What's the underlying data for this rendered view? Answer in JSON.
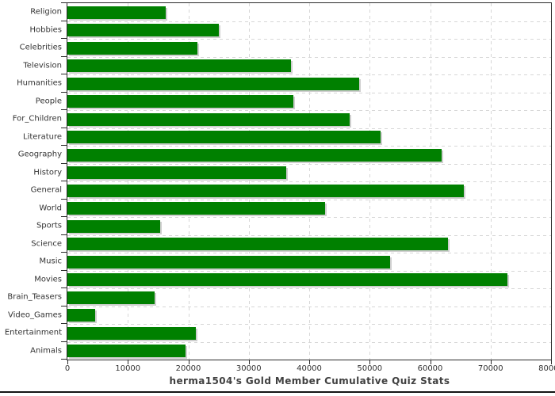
{
  "chart_data": {
    "type": "bar",
    "orientation": "horizontal",
    "title": "herma1504's Gold Member Cumulative Quiz Stats",
    "xlabel": "",
    "ylabel": "",
    "categories": [
      "Religion",
      "Hobbies",
      "Celebrities",
      "Television",
      "Humanities",
      "People",
      "For_Children",
      "Literature",
      "Geography",
      "History",
      "General",
      "World",
      "Sports",
      "Science",
      "Music",
      "Movies",
      "Brain_Teasers",
      "Video_Games",
      "Entertainment",
      "Animals"
    ],
    "values": [
      16300,
      25000,
      21500,
      37000,
      48200,
      37400,
      46700,
      51800,
      61900,
      36200,
      65600,
      42600,
      15300,
      63000,
      53400,
      72800,
      14400,
      4600,
      21300,
      19500
    ],
    "xlim": [
      0,
      80000
    ],
    "x_ticks": [
      0,
      10000,
      20000,
      30000,
      40000,
      50000,
      60000,
      70000,
      80000
    ],
    "grid": "dashed",
    "legend": "none",
    "bar_color": "#008000",
    "shadow_color": "#cfcfcf",
    "axis_color": "#2a2a2a",
    "gridline_color": "#d7d7d7",
    "text_color": "#333333",
    "background_color": "#ffffff"
  }
}
